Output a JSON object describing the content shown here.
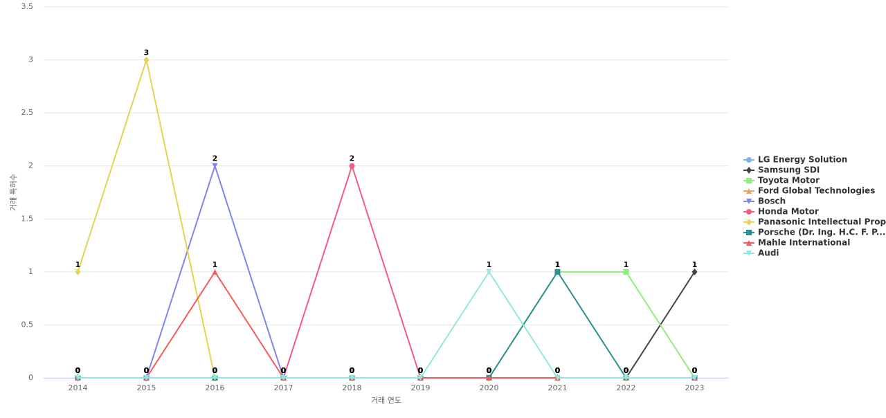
{
  "chart_data": {
    "type": "line",
    "x_label": "거래 연도",
    "y_label": "거래 특허수",
    "categories": [
      "2014",
      "2015",
      "2016",
      "2017",
      "2018",
      "2019",
      "2020",
      "2021",
      "2022",
      "2023"
    ],
    "ylim": [
      0,
      3.5
    ],
    "yticks": [
      0,
      0.5,
      1,
      1.5,
      2,
      2.5,
      3,
      3.5
    ],
    "grid": true,
    "series": [
      {
        "name": "LG Energy Solution",
        "color": "#7cb5ec",
        "marker": "circle",
        "values": [
          0,
          0,
          0,
          0,
          0,
          0,
          0,
          0,
          0,
          0
        ]
      },
      {
        "name": "Samsung SDI",
        "color": "#434348",
        "marker": "diamond",
        "values": [
          0,
          0,
          0,
          0,
          0,
          0,
          0,
          0,
          0,
          1
        ]
      },
      {
        "name": "Toyota Motor",
        "color": "#90ed7d",
        "marker": "square",
        "values": [
          0,
          0,
          0,
          0,
          0,
          0,
          0,
          1,
          1,
          0
        ]
      },
      {
        "name": "Ford Global Technologies",
        "color": "#f7a35c",
        "marker": "triangle",
        "values": [
          0,
          0,
          0,
          0,
          0,
          0,
          0,
          0,
          0,
          0
        ]
      },
      {
        "name": "Bosch",
        "color": "#8085e9",
        "marker": "triangle-down",
        "values": [
          0,
          0,
          2,
          0,
          0,
          0,
          0,
          0,
          0,
          0
        ]
      },
      {
        "name": "Honda Motor",
        "color": "#f15c80",
        "marker": "circle",
        "values": [
          0,
          0,
          0,
          0,
          2,
          0,
          0,
          0,
          0,
          0
        ]
      },
      {
        "name": "Panasonic Intellectual Prop...",
        "color": "#e4d354",
        "marker": "diamond",
        "values": [
          1,
          3,
          0,
          0,
          0,
          0,
          0,
          0,
          0,
          0
        ]
      },
      {
        "name": "Porsche (Dr. Ing. H.C. F. P...",
        "color": "#2b908f",
        "marker": "square",
        "values": [
          0,
          0,
          0,
          0,
          0,
          0,
          0,
          1,
          0,
          0
        ]
      },
      {
        "name": "Mahle International",
        "color": "#f45b5b",
        "marker": "triangle",
        "values": [
          0,
          0,
          1,
          0,
          0,
          0,
          0,
          0,
          0,
          0
        ]
      },
      {
        "name": "Audi",
        "color": "#91e8e1",
        "marker": "triangle-down",
        "values": [
          0,
          0,
          0,
          0,
          0,
          0,
          1,
          0,
          0,
          0
        ]
      }
    ]
  }
}
